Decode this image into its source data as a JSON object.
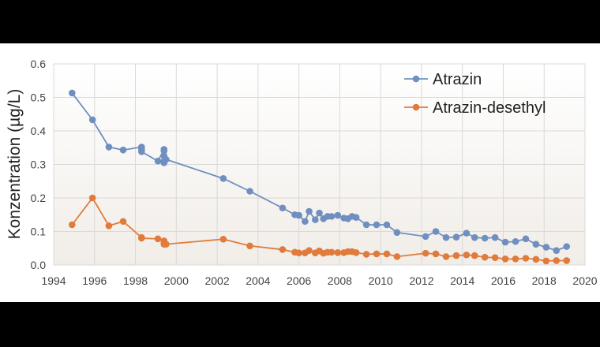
{
  "chart_data": {
    "type": "line",
    "title": "",
    "xlabel": "",
    "ylabel": "Konzentration (µg/L)",
    "xlim": [
      1994,
      2020
    ],
    "ylim": [
      0,
      0.6
    ],
    "xticks": [
      "1994",
      "1996",
      "1998",
      "2000",
      "2002",
      "2004",
      "2006",
      "2008",
      "2010",
      "2012",
      "2014",
      "2016",
      "2018",
      "2020"
    ],
    "yticks": [
      "0.0",
      "0.1",
      "0.2",
      "0.3",
      "0.4",
      "0.5",
      "0.6"
    ],
    "grid": true,
    "legend": "top-right",
    "series": [
      {
        "name": "Atrazin",
        "color": "#6f8fc0",
        "x": [
          1994.9,
          1995.9,
          1996.7,
          1997.4,
          1998.3,
          1998.3,
          1998.3,
          1999.1,
          1999.4,
          1999.4,
          1999.4,
          1999.4,
          1999.4,
          1999.5,
          2002.3,
          2003.6,
          2005.2,
          2005.8,
          2006.0,
          2006.3,
          2006.5,
          2006.8,
          2007.0,
          2007.2,
          2007.4,
          2007.6,
          2007.9,
          2008.2,
          2008.4,
          2008.6,
          2008.8,
          2009.3,
          2009.8,
          2010.3,
          2010.8,
          2012.2,
          2012.7,
          2013.2,
          2013.7,
          2014.2,
          2014.6,
          2015.1,
          2015.6,
          2016.1,
          2016.6,
          2017.1,
          2017.6,
          2018.1,
          2018.6,
          2019.1
        ],
        "y": [
          0.513,
          0.433,
          0.352,
          0.343,
          0.352,
          0.345,
          0.338,
          0.31,
          0.345,
          0.34,
          0.325,
          0.31,
          0.305,
          0.315,
          0.258,
          0.22,
          0.17,
          0.15,
          0.148,
          0.13,
          0.16,
          0.135,
          0.155,
          0.138,
          0.145,
          0.145,
          0.148,
          0.14,
          0.138,
          0.145,
          0.142,
          0.12,
          0.12,
          0.12,
          0.097,
          0.085,
          0.1,
          0.082,
          0.083,
          0.095,
          0.082,
          0.08,
          0.082,
          0.068,
          0.07,
          0.078,
          0.062,
          0.053,
          0.043,
          0.055
        ]
      },
      {
        "name": "Atrazin-desethyl",
        "color": "#e07b3c",
        "x": [
          1994.9,
          1995.9,
          1996.7,
          1997.4,
          1998.3,
          1998.3,
          1999.1,
          1999.4,
          1999.4,
          1999.4,
          1999.5,
          2002.3,
          2003.6,
          2005.2,
          2005.8,
          2006.0,
          2006.3,
          2006.5,
          2006.8,
          2007.0,
          2007.2,
          2007.4,
          2007.6,
          2007.9,
          2008.2,
          2008.4,
          2008.6,
          2008.8,
          2009.3,
          2009.8,
          2010.3,
          2010.8,
          2012.2,
          2012.7,
          2013.2,
          2013.7,
          2014.2,
          2014.6,
          2015.1,
          2015.6,
          2016.1,
          2016.6,
          2017.1,
          2017.6,
          2018.1,
          2018.6,
          2019.1
        ],
        "y": [
          0.12,
          0.2,
          0.117,
          0.13,
          0.082,
          0.08,
          0.078,
          0.072,
          0.065,
          0.062,
          0.062,
          0.077,
          0.057,
          0.046,
          0.038,
          0.036,
          0.036,
          0.043,
          0.036,
          0.042,
          0.035,
          0.038,
          0.038,
          0.037,
          0.037,
          0.04,
          0.04,
          0.037,
          0.032,
          0.033,
          0.033,
          0.025,
          0.035,
          0.033,
          0.025,
          0.028,
          0.03,
          0.028,
          0.023,
          0.022,
          0.018,
          0.018,
          0.02,
          0.017,
          0.012,
          0.013,
          0.013
        ]
      }
    ]
  }
}
